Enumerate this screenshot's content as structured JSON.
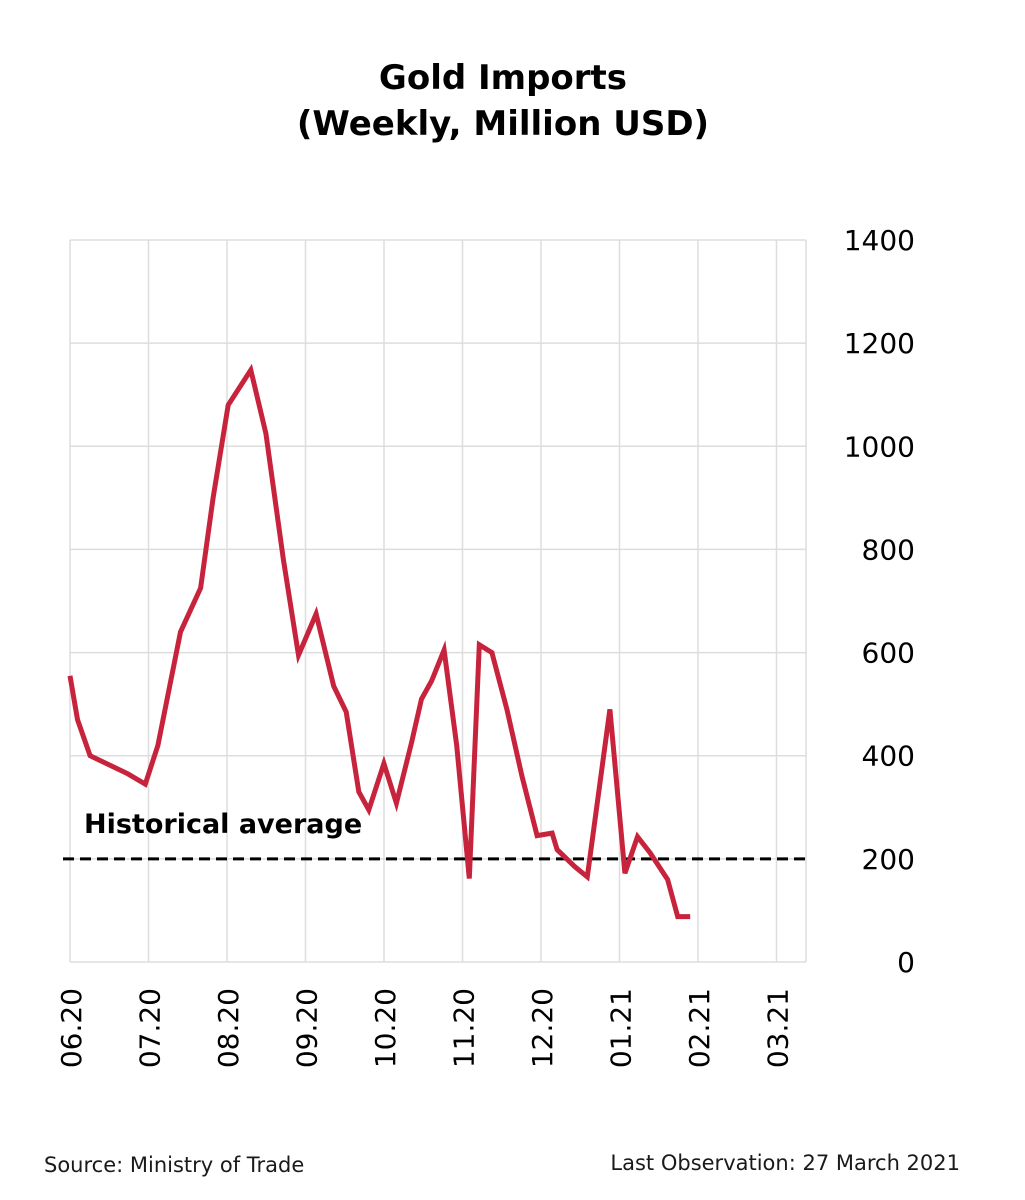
{
  "chart_data": {
    "type": "line",
    "title": "Gold Imports",
    "subtitle": "(Weekly, Million USD)",
    "xlabel": "",
    "ylabel": "",
    "ylim": [
      0,
      1400
    ],
    "y_ticks": [
      0,
      200,
      400,
      600,
      800,
      1000,
      1200,
      1400
    ],
    "y_axis_position": "right",
    "x_ticks": [
      "06.20",
      "07.20",
      "08.20",
      "09.20",
      "10.20",
      "11.20",
      "12.20",
      "01.21",
      "02.21",
      "03.21"
    ],
    "grid": true,
    "series": [
      {
        "color": "#c8233c",
        "x": [
          0,
          0.15,
          0.4,
          1.15,
          1.5,
          1.75,
          2.2,
          2.6,
          2.85,
          3.15,
          3.6,
          3.9,
          4.25,
          4.55,
          4.9,
          5.25,
          5.5,
          5.75,
          5.95,
          6.25,
          6.5,
          6.8,
          7.0,
          7.2,
          7.45,
          7.7,
          7.95,
          8.15,
          8.4,
          8.7,
          9.0,
          9.3,
          9.6,
          9.7,
          10.05,
          10.3,
          10.75,
          11.05,
          11.3,
          11.55,
          11.9,
          12.1,
          12.35,
          12.6,
          12.85,
          13.1,
          13.55,
          13.8,
          14.1,
          14.4,
          14.7,
          14.95,
          15.3,
          15.55,
          15.8,
          16.1
        ],
        "values": [
          555,
          470,
          400,
          365,
          345,
          420,
          640,
          725,
          900,
          1080,
          1148,
          1025,
          780,
          595,
          675,
          535,
          485,
          330,
          295,
          385,
          308,
          425,
          510,
          545,
          605,
          420,
          162,
          615,
          600,
          490,
          360,
          245,
          250,
          218,
          185,
          165,
          490,
          172,
          243,
          212,
          160,
          88,
          88,
          88,
          88,
          88,
          88,
          88,
          88,
          88,
          88,
          88,
          88,
          88,
          88,
          88
        ]
      }
    ],
    "reference_line": {
      "label": "Historical average",
      "value": 200,
      "color": "#000000",
      "style": "dashed"
    }
  },
  "footer": {
    "source": "Source: Ministry of Trade",
    "last_observation": "Last Observation: 27 March 2021"
  }
}
